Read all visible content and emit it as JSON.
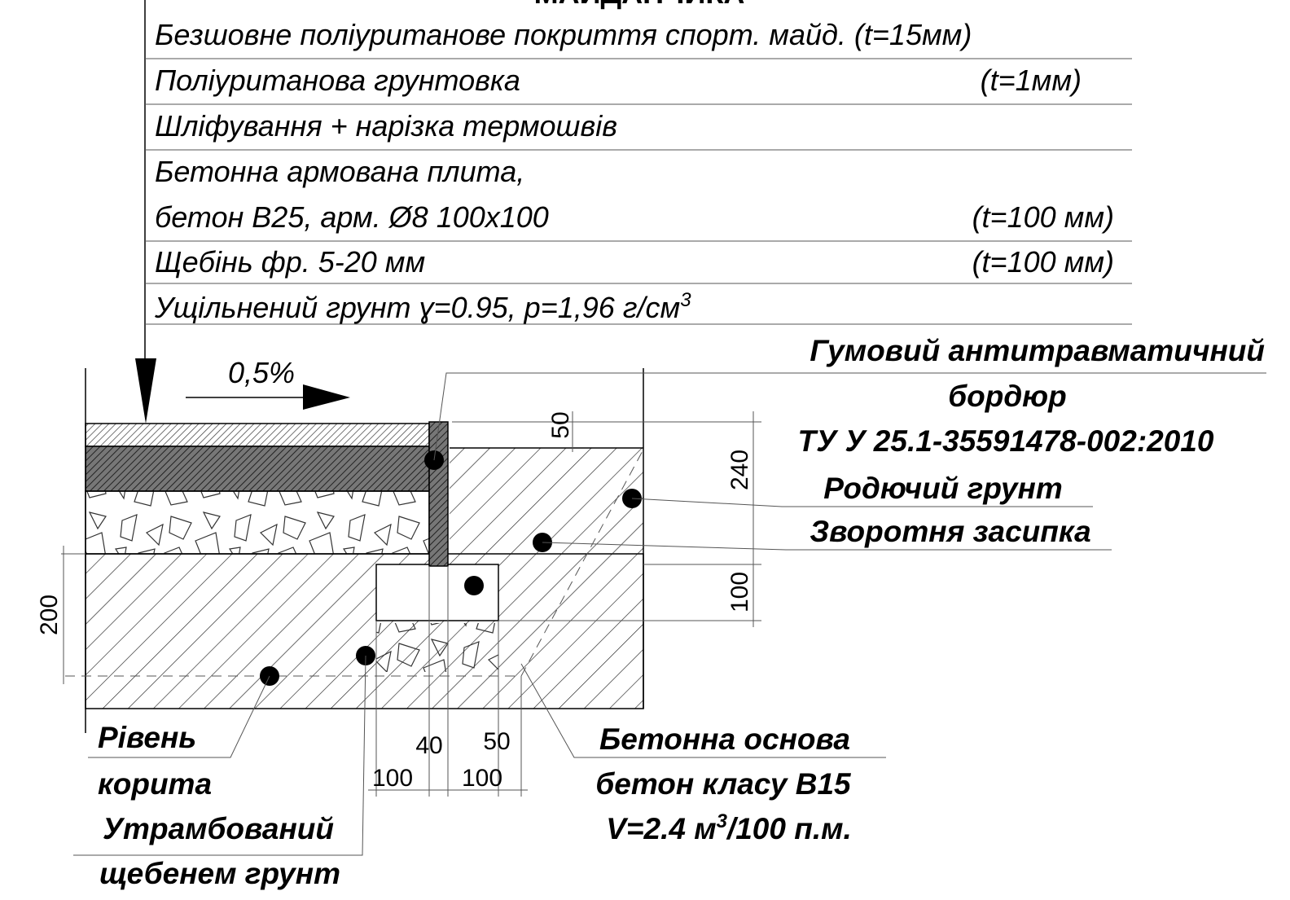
{
  "title": "МАЙДАНЧИКА",
  "layers": [
    {
      "text": "Безшовне поліуританове покриття спорт. майд. (t=15мм)"
    },
    {
      "text": "Поліуританова грунтовка",
      "thickness": "(t=1мм)"
    },
    {
      "text": "Шліфування + нарізка термошвів"
    },
    {
      "text": "Бетонна армована плита,",
      "text2": "бетон В25, арм. Ø8 100х100",
      "thickness": "(t=100 мм)"
    },
    {
      "text": "Щебінь фр. 5-20 мм",
      "thickness": "(t=100 мм)"
    },
    {
      "text": "Ущільнений грунт ɣ=0.95, p=1,96 г/см",
      "sup": "3"
    }
  ],
  "slope": "0,5%",
  "labels": {
    "curb": [
      "Гумовий антитравматичний",
      "бордюр",
      "ТУ У 25.1-35591478-002:2010"
    ],
    "fertile_soil": "Родючий грунт",
    "backfill": "Зворотня засипка",
    "base": [
      "Бетонна основа",
      "бетон класу В15"
    ],
    "base_volume": {
      "before": "V=2.4 м",
      "sup": "3",
      "after": "/100 п.м."
    },
    "trough": [
      "Рівень",
      "корита"
    ],
    "compacted": [
      "Утрамбований",
      "щебенем грунт"
    ]
  },
  "dimensions": {
    "curb_top": "50",
    "curb_height": "240",
    "base_height": "100",
    "trough_depth": "200",
    "curb_width": "40",
    "gap": "50",
    "base_left": "100",
    "base_right": "100"
  }
}
